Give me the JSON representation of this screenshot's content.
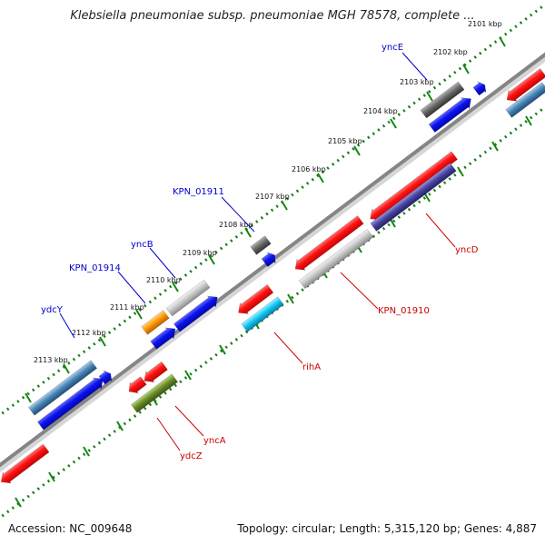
{
  "header": {
    "title": "Klebsiella pneumoniae subsp. pneumoniae MGH 78578, complete ..."
  },
  "footer": {
    "accession": "Accession: NC_009648",
    "summary": "Topology: circular; Length: 5,315,120 bp; Genes: 4,887"
  },
  "scale_labels": [
    "2101 kbp",
    "2102 kbp",
    "2103 kbp",
    "2104 kbp",
    "2105 kbp",
    "2106 kbp",
    "2107 kbp",
    "2108 kbp",
    "2109 kbp",
    "2110 kbp",
    "2111 kbp",
    "2112 kbp",
    "2113 kbp"
  ],
  "gene_labels": {
    "forward": [
      "yncE",
      "KPN_01911",
      "yncB",
      "KPN_01914",
      "ydcY"
    ],
    "reverse": [
      "yncD",
      "KPN_01910",
      "rihA",
      "yncA",
      "ydcZ"
    ]
  },
  "colors": {
    "forward_label": "#0000cc",
    "reverse_label": "#cc0000",
    "backbone": "#888888",
    "ticks": "#118811"
  }
}
